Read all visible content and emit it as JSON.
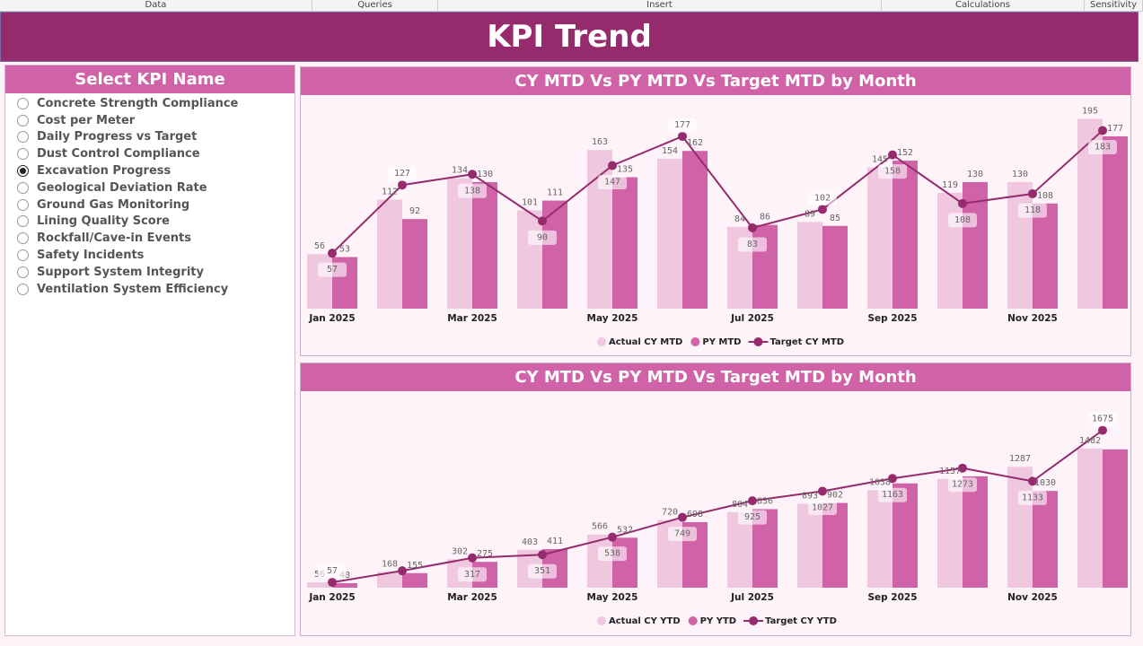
{
  "ribbon": {
    "tabs": [
      "Data",
      "Queries",
      "Insert",
      "Calculations",
      "Sensitivity"
    ]
  },
  "header": {
    "title": "KPI Trend"
  },
  "slicer": {
    "title": "Select KPI Name",
    "selected": "Excavation Progress",
    "items": [
      "Concrete Strength Compliance",
      "Cost per Meter",
      "Daily Progress vs Target",
      "Dust Control Compliance",
      "Excavation Progress",
      "Geological Deviation Rate",
      "Ground Gas Monitoring",
      "Lining Quality Score",
      "Rockfall/Cave-in Events",
      "Safety Incidents",
      "Support System Integrity",
      "Ventilation System Efficiency"
    ]
  },
  "colors": {
    "actual": "#efc8e0",
    "py": "#d063a8",
    "target": "#952a6c",
    "header": "#952a6c",
    "accent": "#d063a8"
  },
  "chart_data": [
    {
      "type": "bar",
      "title": "CY MTD Vs PY MTD Vs Target MTD by Month",
      "categories": [
        "Jan 2025",
        "Feb 2025",
        "Mar 2025",
        "Apr 2025",
        "May 2025",
        "Jun 2025",
        "Jul 2025",
        "Aug 2025",
        "Sep 2025",
        "Oct 2025",
        "Nov 2025",
        "Dec 2025"
      ],
      "tick_labels": [
        "Jan 2025",
        "",
        "Mar 2025",
        "",
        "May 2025",
        "",
        "Jul 2025",
        "",
        "Sep 2025",
        "",
        "Nov 2025",
        ""
      ],
      "ylim": [
        0,
        200
      ],
      "grid": false,
      "legend": "bottom",
      "series": [
        {
          "name": "Actual CY MTD",
          "kind": "bar",
          "values": [
            56,
            112,
            134,
            101,
            163,
            154,
            84,
            89,
            145,
            119,
            130,
            195
          ]
        },
        {
          "name": "PY MTD",
          "kind": "bar",
          "values": [
            53,
            92,
            130,
            111,
            135,
            162,
            86,
            85,
            152,
            130,
            108,
            177
          ]
        },
        {
          "name": "Target CY MTD",
          "kind": "line",
          "values": [
            57,
            127,
            138,
            90,
            147,
            177,
            83,
            102,
            158,
            108,
            118,
            183
          ]
        }
      ]
    },
    {
      "type": "bar",
      "title": "CY MTD Vs PY MTD Vs Target MTD by Month",
      "categories": [
        "Jan 2025",
        "Feb 2025",
        "Mar 2025",
        "Apr 2025",
        "May 2025",
        "Jun 2025",
        "Jul 2025",
        "Aug 2025",
        "Sep 2025",
        "Oct 2025",
        "Nov 2025",
        "Dec 2025"
      ],
      "tick_labels": [
        "Jan 2025",
        "",
        "Mar 2025",
        "",
        "May 2025",
        "",
        "Jul 2025",
        "",
        "Sep 2025",
        "",
        "Nov 2025",
        ""
      ],
      "ylim": [
        0,
        1700
      ],
      "grid": false,
      "legend": "bottom",
      "series": [
        {
          "name": "Actual CY YTD",
          "kind": "bar",
          "values": [
            56,
            168,
            302,
            403,
            566,
            720,
            804,
            893,
            1038,
            1157,
            1287,
            1482
          ]
        },
        {
          "name": "PY YTD",
          "kind": "bar",
          "values": [
            48,
            155,
            275,
            411,
            532,
            698,
            836,
            902,
            1110,
            1185,
            1030,
            1472
          ],
          "labels": [
            48,
            155,
            275,
            411,
            532,
            698,
            836,
            902,
            null,
            null,
            1030,
            null
          ]
        },
        {
          "name": "Target CY YTD",
          "kind": "line",
          "values": [
            57,
            180,
            317,
            351,
            538,
            749,
            925,
            1027,
            1163,
            1273,
            1133,
            1675
          ],
          "labels": [
            57,
            null,
            317,
            351,
            538,
            749,
            925,
            1027,
            1163,
            1273,
            1133,
            1675
          ]
        }
      ]
    }
  ]
}
